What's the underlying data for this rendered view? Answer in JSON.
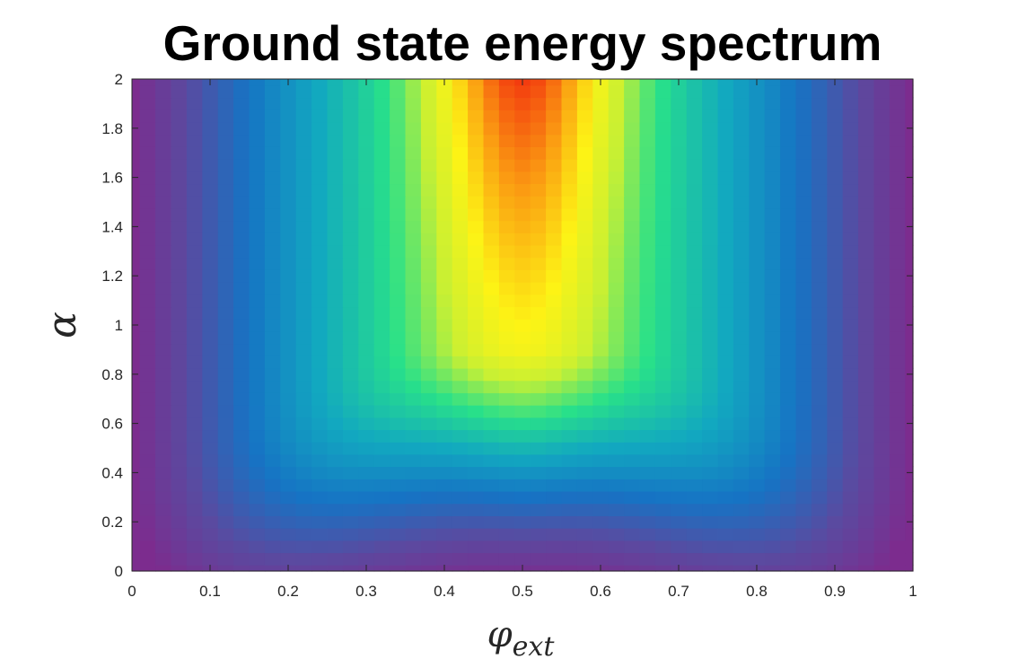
{
  "chart_data": {
    "type": "heatmap",
    "title": "Ground state energy spectrum",
    "xlabel_base": "φ",
    "xlabel_sub": "ext",
    "ylabel": "α",
    "xlim": [
      0,
      1
    ],
    "ylim": [
      0,
      2
    ],
    "xticks": [
      "0",
      "0.1",
      "0.2",
      "0.3",
      "0.4",
      "0.5",
      "0.6",
      "0.7",
      "0.8",
      "0.9",
      "1"
    ],
    "yticks": [
      "0",
      "0.2",
      "0.4",
      "0.6",
      "0.8",
      "1",
      "1.2",
      "1.4",
      "1.6",
      "1.8",
      "2"
    ],
    "colormap": "parula",
    "grid_x_count": 51,
    "grid_y_count": 41,
    "colormap_stops": [
      "#7c2c8e",
      "#5a4aa0",
      "#1673c4",
      "#12a8c0",
      "#28e08a",
      "#c8f033",
      "#fdf315",
      "#fba012",
      "#f33c0f"
    ],
    "field_description": "value rises from purple at phi=0 and phi=1 to red at phi=0.5, alpha=2; near alpha=0 a purple dip appears at phi=0.5"
  }
}
